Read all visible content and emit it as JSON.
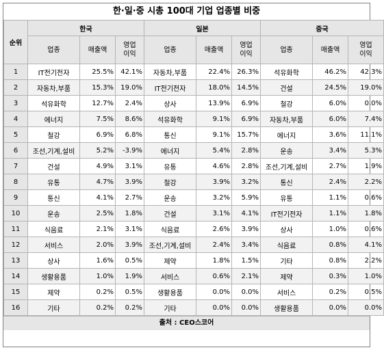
{
  "title": "한·일·중 시총 100대 기업 업종별 비중",
  "header": {
    "rank": "순위",
    "countries": [
      "한국",
      "일본",
      "중국"
    ],
    "industry": "업종",
    "sales": "매출액",
    "profit_line1": "영업",
    "profit_line2": "이익"
  },
  "rows": [
    {
      "rank": "1",
      "kr": [
        "IT전기전자",
        "25.5%",
        "42.1%"
      ],
      "jp": [
        "자동차,부품",
        "22.4%",
        "26.3%"
      ],
      "cn": [
        "석유화학",
        "46.2%",
        "42.3%"
      ]
    },
    {
      "rank": "2",
      "kr": [
        "자동차,부품",
        "15.3%",
        "19.0%"
      ],
      "jp": [
        "IT전기전자",
        "18.0%",
        "14.5%"
      ],
      "cn": [
        "건설",
        "24.5%",
        "19.0%"
      ]
    },
    {
      "rank": "3",
      "kr": [
        "석유화학",
        "12.7%",
        "2.4%"
      ],
      "jp": [
        "상사",
        "13.9%",
        "6.9%"
      ],
      "cn": [
        "철강",
        "6.0%",
        "0.0%"
      ]
    },
    {
      "rank": "4",
      "kr": [
        "에너지",
        "7.5%",
        "8.6%"
      ],
      "jp": [
        "석유화학",
        "9.1%",
        "6.9%"
      ],
      "cn": [
        "자동차,부품",
        "6.0%",
        "7.4%"
      ]
    },
    {
      "rank": "5",
      "kr": [
        "철강",
        "6.9%",
        "6.8%"
      ],
      "jp": [
        "통신",
        "9.1%",
        "15.7%"
      ],
      "cn": [
        "에너지",
        "3.6%",
        "11.1%"
      ]
    },
    {
      "rank": "6",
      "kr": [
        "조선,기계,설비",
        "5.2%",
        "-3.9%"
      ],
      "jp": [
        "에너지",
        "5.4%",
        "2.8%"
      ],
      "cn": [
        "운송",
        "3.4%",
        "5.3%"
      ]
    },
    {
      "rank": "7",
      "kr": [
        "건설",
        "4.9%",
        "3.1%"
      ],
      "jp": [
        "유통",
        "4.6%",
        "2.8%"
      ],
      "cn": [
        "조선,기계,설비",
        "2.7%",
        "1.9%"
      ]
    },
    {
      "rank": "8",
      "kr": [
        "유통",
        "4.7%",
        "3.9%"
      ],
      "jp": [
        "철강",
        "3.9%",
        "3.2%"
      ],
      "cn": [
        "통신",
        "2.4%",
        "2.2%"
      ]
    },
    {
      "rank": "9",
      "kr": [
        "통신",
        "4.1%",
        "2.7%"
      ],
      "jp": [
        "운송",
        "3.2%",
        "5.9%"
      ],
      "cn": [
        "유통",
        "1.1%",
        "0.6%"
      ]
    },
    {
      "rank": "10",
      "kr": [
        "운송",
        "2.5%",
        "1.8%"
      ],
      "jp": [
        "건설",
        "3.1%",
        "4.1%"
      ],
      "cn": [
        "IT전기전자",
        "1.1%",
        "1.8%"
      ]
    },
    {
      "rank": "11",
      "kr": [
        "식음료",
        "2.1%",
        "3.1%"
      ],
      "jp": [
        "식음료",
        "2.6%",
        "3.9%"
      ],
      "cn": [
        "상사",
        "1.0%",
        "0.6%"
      ]
    },
    {
      "rank": "12",
      "kr": [
        "서비스",
        "2.0%",
        "3.9%"
      ],
      "jp": [
        "조선,기계,설비",
        "2.4%",
        "3.4%"
      ],
      "cn": [
        "식음료",
        "0.8%",
        "4.1%"
      ]
    },
    {
      "rank": "13",
      "kr": [
        "상사",
        "1.6%",
        "0.5%"
      ],
      "jp": [
        "제약",
        "1.8%",
        "1.5%"
      ],
      "cn": [
        "기타",
        "0.8%",
        "2.2%"
      ]
    },
    {
      "rank": "14",
      "kr": [
        "생활용품",
        "1.0%",
        "1.9%"
      ],
      "jp": [
        "서비스",
        "0.6%",
        "2.1%"
      ],
      "cn": [
        "제약",
        "0.3%",
        "1.0%"
      ]
    },
    {
      "rank": "15",
      "kr": [
        "제약",
        "0.2%",
        "0.5%"
      ],
      "jp": [
        "생활용품",
        "0.0%",
        "0.0%"
      ],
      "cn": [
        "서비스",
        "0.2%",
        "0.5%"
      ]
    },
    {
      "rank": "16",
      "kr": [
        "기타",
        "0.2%",
        "0.2%"
      ],
      "jp": [
        "기타",
        "0.0%",
        "0.0%"
      ],
      "cn": [
        "생활용품",
        "0.0%",
        "0.0%"
      ]
    }
  ],
  "source": "출처 : CEO스코어"
}
